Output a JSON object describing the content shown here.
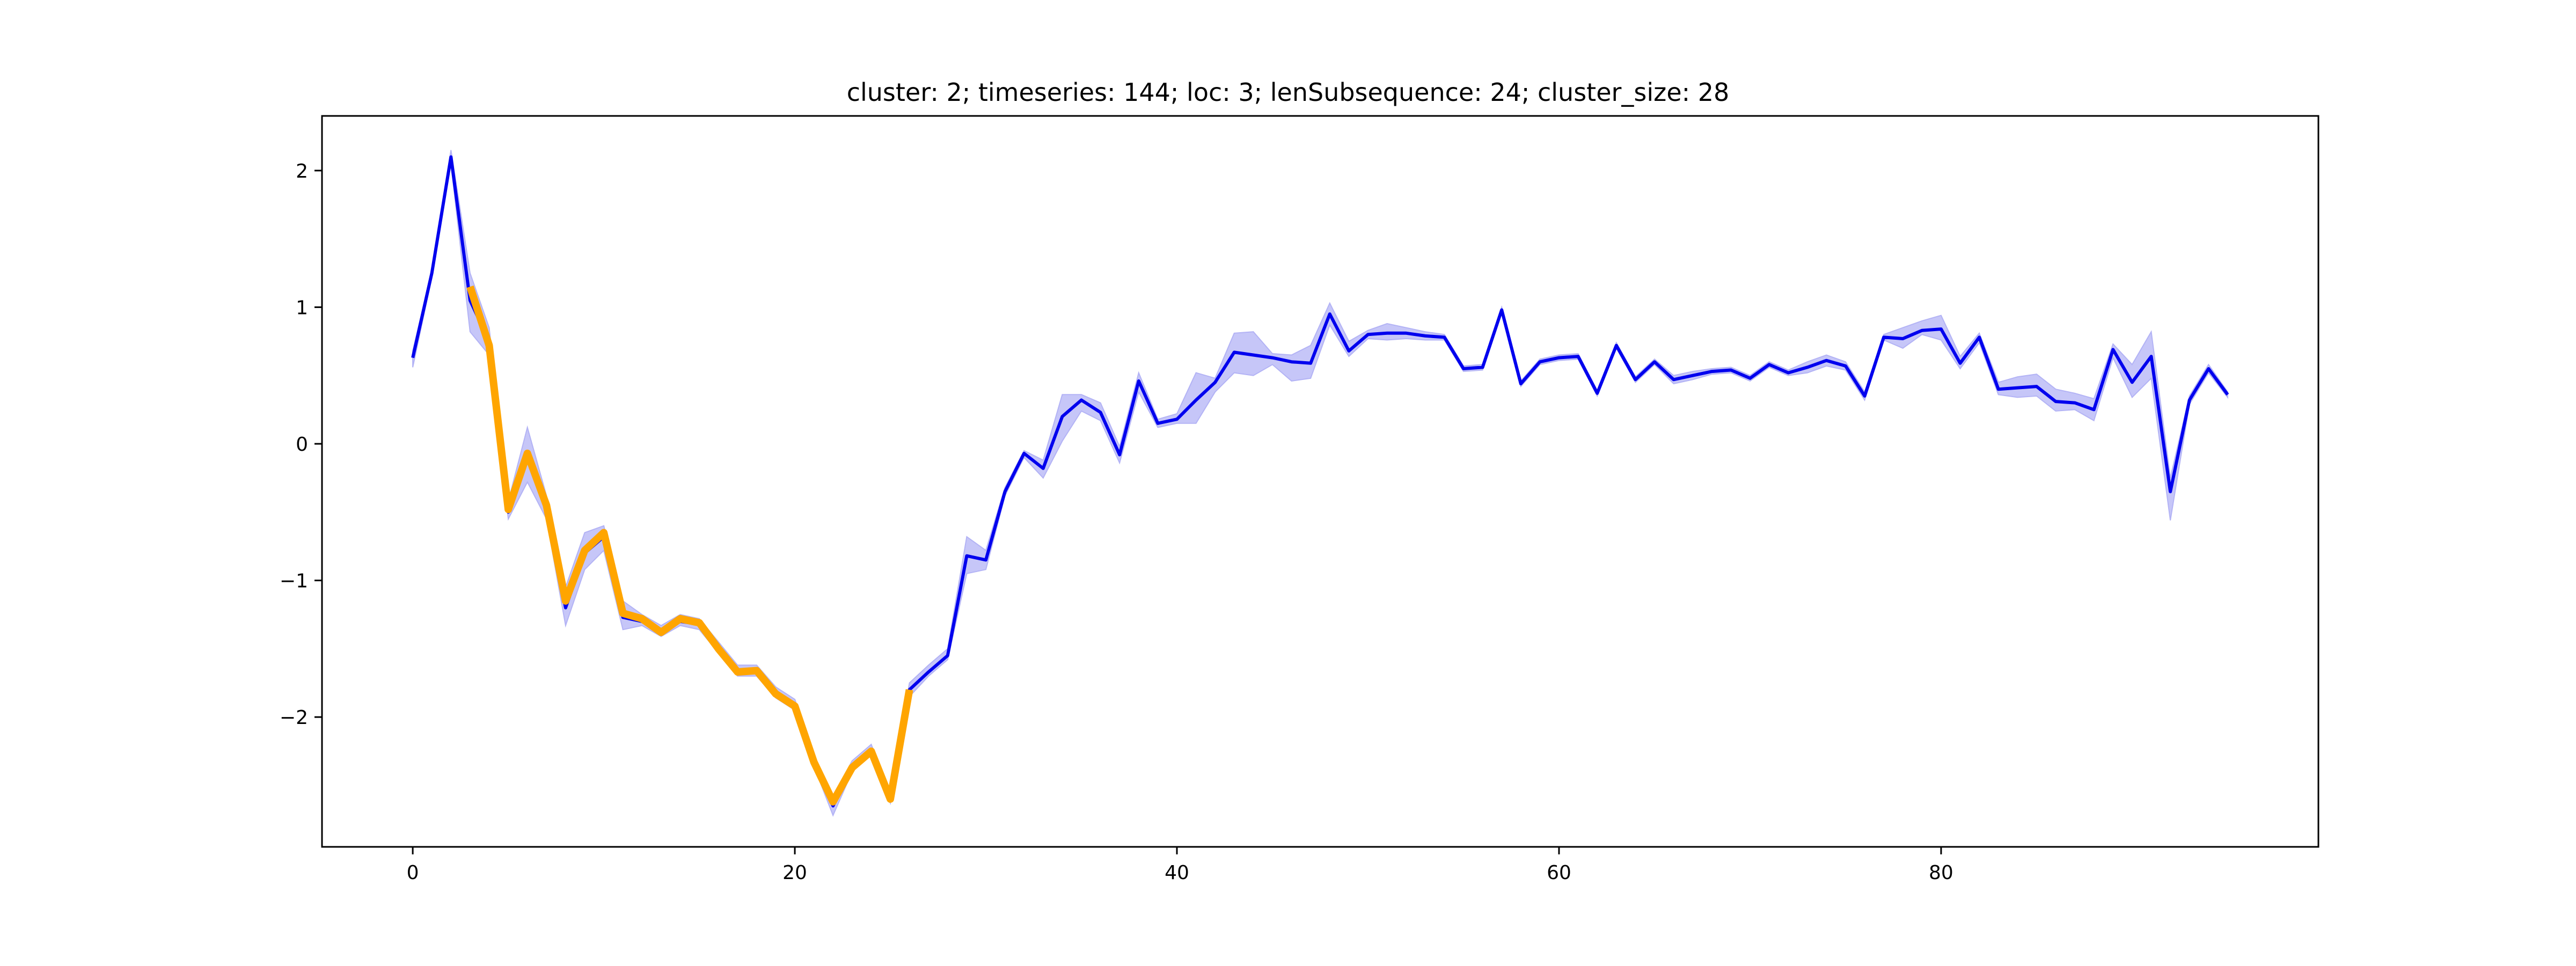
{
  "chart_data": {
    "type": "line",
    "title": "cluster: 2; timeseries: 144; loc: 3; lenSubsequence: 24; cluster_size: 28",
    "xlabel": "",
    "ylabel": "",
    "xlim": [
      -4.75,
      99.75
    ],
    "ylim": [
      -2.95,
      2.4
    ],
    "xticks": [
      0,
      20,
      40,
      60,
      80
    ],
    "yticks": [
      2,
      1,
      0,
      -1,
      -2
    ],
    "xtick_labels": [
      "0",
      "20",
      "40",
      "60",
      "80"
    ],
    "ytick_labels": [
      "2",
      "1",
      "0",
      "−1",
      "−2"
    ],
    "grid": false,
    "colors": {
      "mean": "#0000ee",
      "band": "#b3b3f5",
      "subsequence": "#ffa500",
      "axes": "#000000"
    },
    "series": [
      {
        "role": "mean",
        "x": [
          0,
          1,
          2,
          3,
          4,
          5,
          6,
          7,
          8,
          9,
          10,
          11,
          12,
          13,
          14,
          15,
          16,
          17,
          18,
          19,
          20,
          21,
          22,
          23,
          24,
          25,
          26,
          27,
          28,
          29,
          30,
          31,
          32,
          33,
          34,
          35,
          36,
          37,
          38,
          39,
          40,
          41,
          42,
          43,
          44,
          45,
          46,
          47,
          48,
          49,
          50,
          51,
          52,
          53,
          54,
          55,
          56,
          57,
          58,
          59,
          60,
          61,
          62,
          63,
          64,
          65,
          66,
          67,
          68,
          69,
          70,
          71,
          72,
          73,
          74,
          75,
          76,
          77,
          78,
          79,
          80,
          81,
          82,
          83,
          84,
          85,
          86,
          87,
          88,
          89,
          90,
          91,
          92,
          93,
          94,
          95
        ],
        "y": [
          0.63,
          1.25,
          2.1,
          1.05,
          0.75,
          -0.5,
          -0.1,
          -0.48,
          -1.2,
          -0.8,
          -0.68,
          -1.27,
          -1.3,
          -1.38,
          -1.3,
          -1.32,
          -1.5,
          -1.67,
          -1.67,
          -1.83,
          -1.92,
          -2.33,
          -2.65,
          -2.37,
          -2.25,
          -2.6,
          -1.8,
          -1.67,
          -1.55,
          -0.82,
          -0.85,
          -0.35,
          -0.07,
          -0.18,
          0.2,
          0.32,
          0.23,
          -0.08,
          0.46,
          0.15,
          0.18,
          0.32,
          0.45,
          0.67,
          0.65,
          0.63,
          0.6,
          0.59,
          0.95,
          0.68,
          0.8,
          0.81,
          0.81,
          0.79,
          0.78,
          0.55,
          0.56,
          0.98,
          0.44,
          0.6,
          0.63,
          0.64,
          0.37,
          0.72,
          0.47,
          0.6,
          0.47,
          0.5,
          0.53,
          0.54,
          0.48,
          0.58,
          0.52,
          0.56,
          0.61,
          0.57,
          0.35,
          0.78,
          0.77,
          0.83,
          0.84,
          0.59,
          0.78,
          0.4,
          0.41,
          0.42,
          0.31,
          0.3,
          0.25,
          0.69,
          0.45,
          0.64,
          -0.35,
          0.32,
          0.55,
          0.36
        ]
      },
      {
        "role": "band_upper",
        "x": [
          0,
          1,
          2,
          3,
          4,
          5,
          6,
          7,
          8,
          9,
          10,
          11,
          12,
          13,
          14,
          15,
          16,
          17,
          18,
          19,
          20,
          21,
          22,
          23,
          24,
          25,
          26,
          27,
          28,
          29,
          30,
          31,
          32,
          33,
          34,
          35,
          36,
          37,
          38,
          39,
          40,
          41,
          42,
          43,
          44,
          45,
          46,
          47,
          48,
          49,
          50,
          51,
          52,
          53,
          54,
          55,
          56,
          57,
          58,
          59,
          60,
          61,
          62,
          63,
          64,
          65,
          66,
          67,
          68,
          69,
          70,
          71,
          72,
          73,
          74,
          75,
          76,
          77,
          78,
          79,
          80,
          81,
          82,
          83,
          84,
          85,
          86,
          87,
          88,
          89,
          90,
          91,
          92,
          93,
          94,
          95
        ],
        "y": [
          0.68,
          1.27,
          2.15,
          1.25,
          0.85,
          -0.42,
          0.12,
          -0.38,
          -1.05,
          -0.65,
          -0.6,
          -1.15,
          -1.25,
          -1.33,
          -1.25,
          -1.28,
          -1.45,
          -1.62,
          -1.62,
          -1.78,
          -1.87,
          -2.28,
          -2.58,
          -2.32,
          -2.2,
          -2.55,
          -1.75,
          -1.62,
          -1.5,
          -0.68,
          -0.78,
          -0.32,
          -0.05,
          -0.12,
          0.36,
          0.36,
          0.3,
          -0.02,
          0.52,
          0.18,
          0.22,
          0.52,
          0.48,
          0.81,
          0.82,
          0.66,
          0.65,
          0.72,
          1.03,
          0.75,
          0.83,
          0.88,
          0.85,
          0.82,
          0.8,
          0.57,
          0.58,
          1.0,
          0.46,
          0.62,
          0.65,
          0.66,
          0.39,
          0.74,
          0.49,
          0.62,
          0.5,
          0.53,
          0.55,
          0.56,
          0.5,
          0.6,
          0.54,
          0.6,
          0.65,
          0.6,
          0.38,
          0.8,
          0.85,
          0.9,
          0.94,
          0.64,
          0.81,
          0.45,
          0.49,
          0.51,
          0.4,
          0.37,
          0.33,
          0.73,
          0.58,
          0.82,
          -0.25,
          0.35,
          0.58,
          0.38
        ]
      },
      {
        "role": "band_lower",
        "x": [
          0,
          1,
          2,
          3,
          4,
          5,
          6,
          7,
          8,
          9,
          10,
          11,
          12,
          13,
          14,
          15,
          16,
          17,
          18,
          19,
          20,
          21,
          22,
          23,
          24,
          25,
          26,
          27,
          28,
          29,
          30,
          31,
          32,
          33,
          34,
          35,
          36,
          37,
          38,
          39,
          40,
          41,
          42,
          43,
          44,
          45,
          46,
          47,
          48,
          49,
          50,
          51,
          52,
          53,
          54,
          55,
          56,
          57,
          58,
          59,
          60,
          61,
          62,
          63,
          64,
          65,
          66,
          67,
          68,
          69,
          70,
          71,
          72,
          73,
          74,
          75,
          76,
          77,
          78,
          79,
          80,
          81,
          82,
          83,
          84,
          85,
          86,
          87,
          88,
          89,
          90,
          91,
          92,
          93,
          94,
          95
        ],
        "y": [
          0.56,
          1.22,
          2.05,
          0.82,
          0.65,
          -0.55,
          -0.28,
          -0.55,
          -1.33,
          -0.92,
          -0.78,
          -1.36,
          -1.33,
          -1.41,
          -1.33,
          -1.36,
          -1.53,
          -1.7,
          -1.7,
          -1.86,
          -1.95,
          -2.36,
          -2.72,
          -2.4,
          -2.28,
          -2.63,
          -1.85,
          -1.7,
          -1.58,
          -0.95,
          -0.92,
          -0.38,
          -0.1,
          -0.25,
          0.02,
          0.24,
          0.17,
          -0.14,
          0.38,
          0.12,
          0.15,
          0.15,
          0.38,
          0.52,
          0.5,
          0.58,
          0.46,
          0.48,
          0.87,
          0.64,
          0.77,
          0.76,
          0.77,
          0.76,
          0.76,
          0.53,
          0.54,
          0.96,
          0.42,
          0.58,
          0.61,
          0.62,
          0.35,
          0.7,
          0.45,
          0.58,
          0.44,
          0.47,
          0.51,
          0.52,
          0.46,
          0.56,
          0.5,
          0.52,
          0.57,
          0.54,
          0.32,
          0.76,
          0.7,
          0.8,
          0.76,
          0.55,
          0.74,
          0.36,
          0.34,
          0.35,
          0.24,
          0.25,
          0.17,
          0.63,
          0.34,
          0.48,
          -0.56,
          0.29,
          0.52,
          0.34
        ]
      },
      {
        "role": "subsequence",
        "x": [
          3,
          4,
          5,
          6,
          7,
          8,
          9,
          10,
          11,
          12,
          13,
          14,
          15,
          16,
          17,
          18,
          19,
          20,
          21,
          22,
          23,
          24,
          25,
          26
        ],
        "y": [
          1.15,
          0.72,
          -0.48,
          -0.07,
          -0.45,
          -1.15,
          -0.78,
          -0.65,
          -1.24,
          -1.28,
          -1.38,
          -1.28,
          -1.31,
          -1.5,
          -1.67,
          -1.66,
          -1.83,
          -1.92,
          -2.33,
          -2.62,
          -2.37,
          -2.25,
          -2.6,
          -1.8
        ]
      }
    ]
  }
}
